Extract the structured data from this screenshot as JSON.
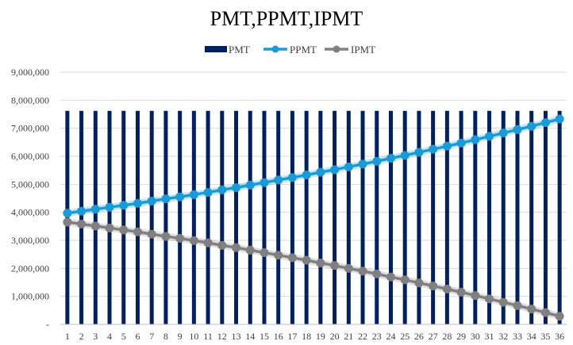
{
  "chart_data": {
    "type": "bar",
    "title": "PMT,PPMT,IPMT",
    "legend_position": "top",
    "grid": true,
    "xlabel": "",
    "ylabel": "",
    "ylim": [
      0,
      9000000
    ],
    "y_tick_values": [
      0,
      1000000,
      2000000,
      3000000,
      4000000,
      5000000,
      6000000,
      7000000,
      8000000,
      9000000
    ],
    "y_tick_labels": [
      "-",
      "1,000,000",
      "2,000,000",
      "3,000,000",
      "4,000,000",
      "5,000,000",
      "6,000,000",
      "7,000,000",
      "8,000,000",
      "9,000,000"
    ],
    "categories": [
      "1",
      "2",
      "3",
      "4",
      "5",
      "6",
      "7",
      "8",
      "9",
      "10",
      "11",
      "12",
      "13",
      "14",
      "15",
      "16",
      "17",
      "18",
      "19",
      "20",
      "21",
      "22",
      "23",
      "24",
      "25",
      "26",
      "27",
      "28",
      "29",
      "30",
      "31",
      "32",
      "33",
      "34",
      "35",
      "36"
    ],
    "series": [
      {
        "name": "PMT",
        "kind": "bar",
        "color": "#002060",
        "values": [
          7620000,
          7620000,
          7620000,
          7620000,
          7620000,
          7620000,
          7620000,
          7620000,
          7620000,
          7620000,
          7620000,
          7620000,
          7620000,
          7620000,
          7620000,
          7620000,
          7620000,
          7620000,
          7620000,
          7620000,
          7620000,
          7620000,
          7620000,
          7620000,
          7620000,
          7620000,
          7620000,
          7620000,
          7620000,
          7620000,
          7620000,
          7620000,
          7620000,
          7620000,
          7620000,
          7620000
        ]
      },
      {
        "name": "PPMT",
        "kind": "line",
        "color": "#1a9ad6",
        "values": [
          3970000,
          4040000,
          4110000,
          4180000,
          4250000,
          4320000,
          4400000,
          4480000,
          4550000,
          4630000,
          4710000,
          4800000,
          4880000,
          4970000,
          5060000,
          5150000,
          5240000,
          5330000,
          5430000,
          5520000,
          5620000,
          5720000,
          5820000,
          5930000,
          6030000,
          6140000,
          6250000,
          6360000,
          6470000,
          6590000,
          6710000,
          6830000,
          6950000,
          7070000,
          7200000,
          7330000
        ]
      },
      {
        "name": "IPMT",
        "kind": "line",
        "color": "#808080",
        "values": [
          3650000,
          3580000,
          3510000,
          3440000,
          3370000,
          3300000,
          3220000,
          3140000,
          3070000,
          2990000,
          2910000,
          2820000,
          2740000,
          2650000,
          2560000,
          2470000,
          2380000,
          2290000,
          2190000,
          2100000,
          2000000,
          1900000,
          1800000,
          1690000,
          1590000,
          1480000,
          1370000,
          1260000,
          1150000,
          1030000,
          910000,
          790000,
          670000,
          550000,
          420000,
          290000
        ]
      }
    ]
  }
}
